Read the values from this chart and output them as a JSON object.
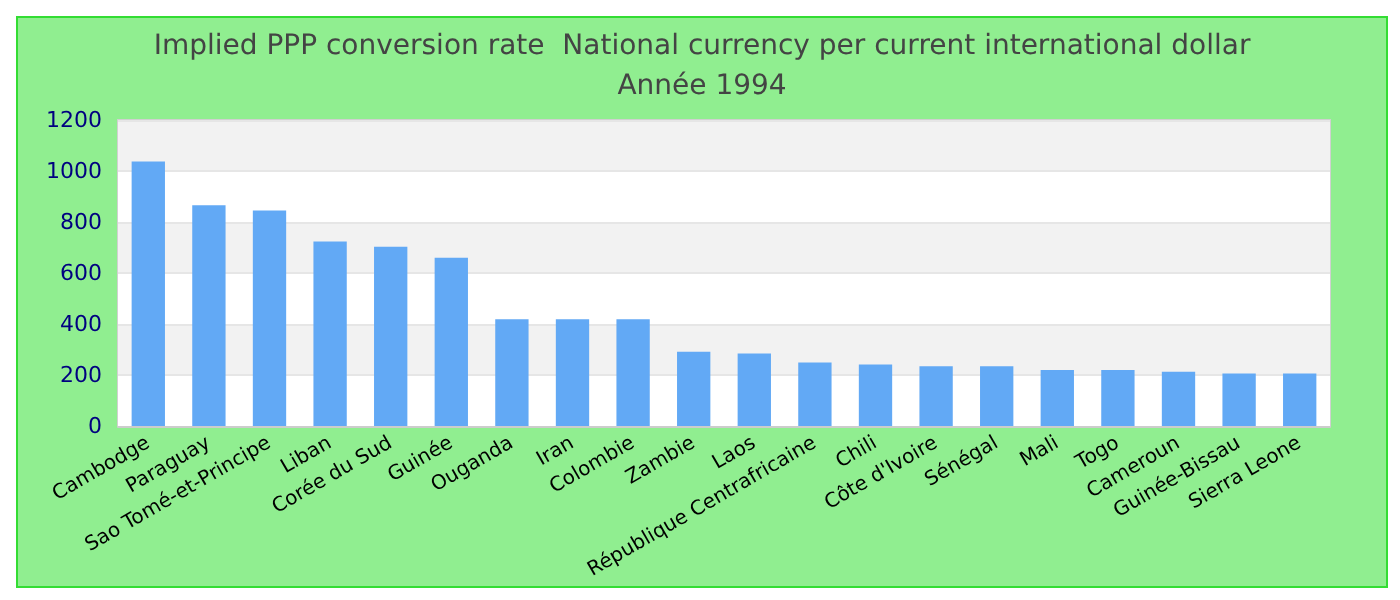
{
  "chart_data": {
    "type": "bar",
    "title": "Implied PPP conversion rate  National currency per current international dollar",
    "subtitle": "Année 1994",
    "categories": [
      "Cambodge",
      "Paraguay",
      "Sao Tomé-et-Principe",
      "Liban",
      "Corée du Sud",
      "Guinée",
      "Ouganda",
      "Iran",
      "Colombie",
      "Zambie",
      "Laos",
      "République Centrafricaine",
      "Chili",
      "Côte d'Ivoire",
      "Sénégal",
      "Mali",
      "Togo",
      "Cameroun",
      "Guinée-Bissau",
      "Sierra Leone"
    ],
    "values": [
      1037,
      866,
      845,
      724,
      703,
      660,
      419,
      419,
      419,
      291,
      284,
      249,
      241,
      234,
      234,
      220,
      220,
      213,
      206,
      206
    ],
    "color": "#62a9f5",
    "ylim": [
      0,
      1200
    ],
    "yticks": [
      0,
      200,
      400,
      600,
      800,
      1000,
      1200
    ],
    "grid": "y"
  }
}
